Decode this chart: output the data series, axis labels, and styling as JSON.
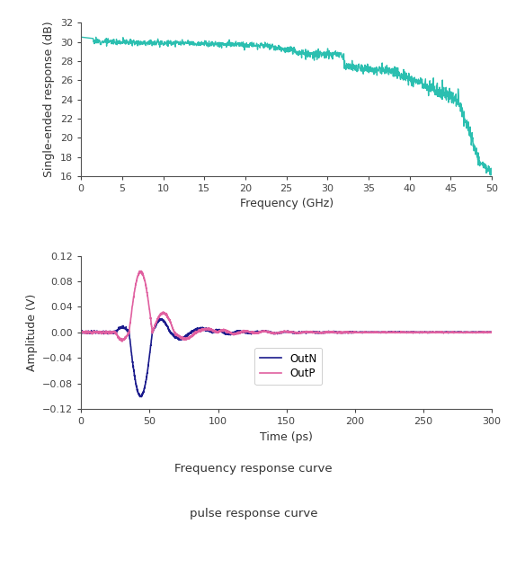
{
  "fig_width": 5.64,
  "fig_height": 6.32,
  "dpi": 100,
  "bg_color": "#ffffff",
  "top_plot": {
    "ylabel": "Single-ended response (dB)",
    "xlabel": "Frequency (GHz)",
    "xlim": [
      0,
      50
    ],
    "ylim": [
      16,
      32
    ],
    "yticks": [
      16,
      18,
      20,
      22,
      24,
      26,
      28,
      30,
      32
    ],
    "xticks": [
      0,
      5,
      10,
      15,
      20,
      25,
      30,
      35,
      40,
      45,
      50
    ],
    "line_color": "#2BBFB0",
    "line_width": 1.0
  },
  "bottom_plot": {
    "ylabel": "Amplitude (V)",
    "xlabel": "Time (ps)",
    "xlim": [
      0,
      300
    ],
    "ylim": [
      -0.12,
      0.12
    ],
    "yticks": [
      -0.12,
      -0.08,
      -0.04,
      0.0,
      0.04,
      0.08,
      0.12
    ],
    "xticks": [
      0,
      50,
      100,
      150,
      200,
      250,
      300
    ],
    "outN_color": "#1A1A8C",
    "outP_color": "#E060A0",
    "line_width": 1.2,
    "legend_labels": [
      "OutN",
      "OutP"
    ]
  },
  "caption1": "Frequency response curve",
  "caption2": "pulse response curve"
}
